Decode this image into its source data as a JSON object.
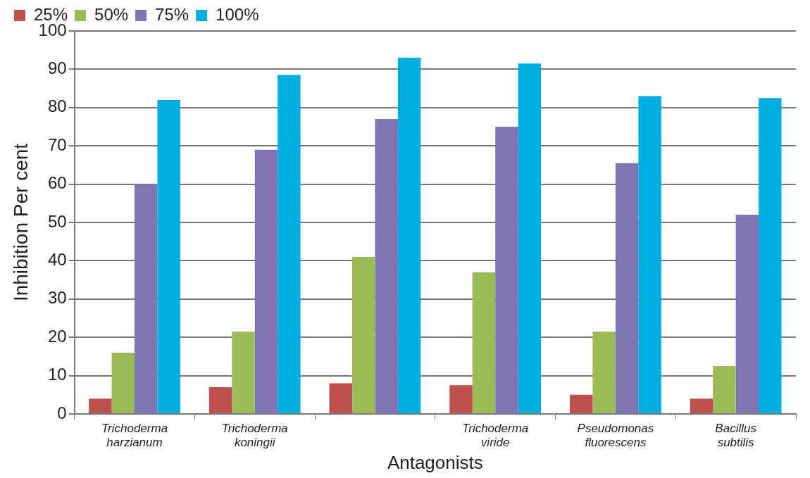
{
  "chart_data": {
    "type": "bar",
    "xlabel": "Antagonists",
    "ylabel": "Inhibition Per cent",
    "categories": [
      "Trichoderma harzianum",
      "Trichoderma koningii",
      null,
      "Trichoderma viride",
      "Pseudomonas fluorescens",
      "Bacillus subtilis"
    ],
    "series": [
      {
        "name": "25%",
        "color": "#c0504d",
        "values": [
          4,
          7,
          8,
          7.5,
          5,
          4
        ]
      },
      {
        "name": "50%",
        "color": "#9bbb59",
        "values": [
          16,
          21.5,
          41,
          37,
          21.5,
          12.5
        ]
      },
      {
        "name": "75%",
        "color": "#7f74b4",
        "values": [
          60,
          69,
          77,
          75,
          65.5,
          52
        ]
      },
      {
        "name": "100%",
        "color": "#00aee0",
        "values": [
          82,
          88.5,
          93,
          91.5,
          83,
          82.5
        ]
      }
    ],
    "ylim": [
      0,
      100
    ],
    "yticks": [
      0,
      10,
      20,
      30,
      40,
      50,
      60,
      70,
      80,
      90,
      100
    ],
    "grid": "y",
    "legend": "top"
  }
}
